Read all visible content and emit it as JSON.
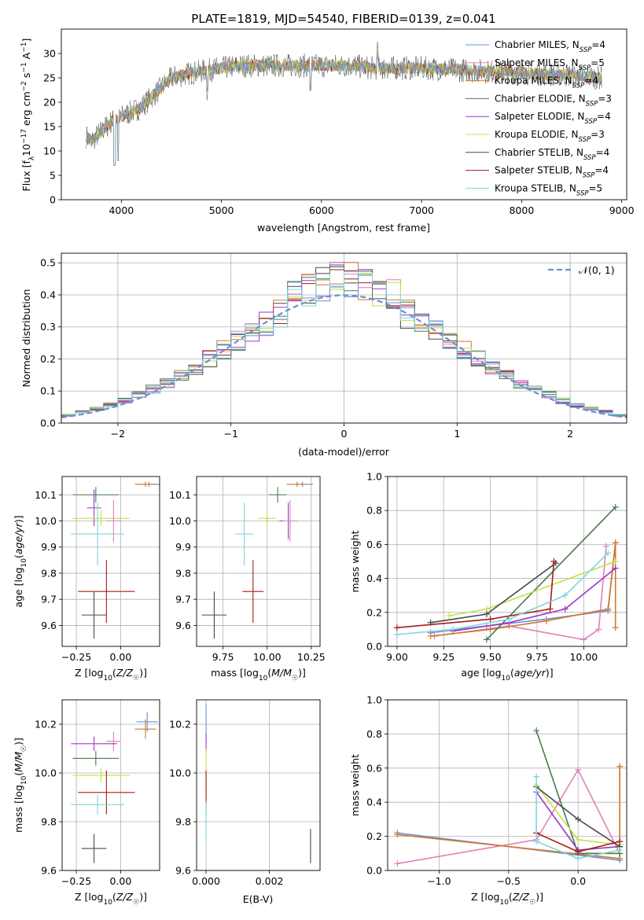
{
  "title": "PLATE=1819, MJD=54540, FIBERID=0139, z=0.041",
  "colors": {
    "chabrier_miles": "#6a8fd8",
    "salpeter_miles": "#e07fb8",
    "kroupa_miles": "#d2782a",
    "chabrier_elodie": "#4a7a4e",
    "salpeter_elodie": "#9b38c4",
    "kroupa_elodie": "#c5e04a",
    "chabrier_stelib": "#4a4a4a",
    "salpeter_stelib": "#a61b1b",
    "kroupa_stelib": "#7ed6dc",
    "gaussian": "#6a8fd8",
    "grid": "#b0b0b0"
  },
  "chart_data": [
    {
      "id": "spectrum",
      "type": "line",
      "xlabel": "wavelength [Angstrom, rest frame]",
      "ylabel": "Flux [f_λ10^-17 erg cm^-2 s^-1 A^-1]",
      "xlim": [
        3400,
        9050
      ],
      "ylim": [
        0,
        35
      ],
      "xticks": [
        4000,
        5000,
        6000,
        7000,
        8000,
        9000
      ],
      "yticks": [
        0,
        5,
        10,
        15,
        20,
        25,
        30
      ],
      "grid": false,
      "legend_position": "right",
      "legend": [
        {
          "label": "Chabrier MILES, N",
          "sub": "SSP",
          "suffix": "=4",
          "color": "chabrier_miles"
        },
        {
          "label": "Salpeter MILES, N",
          "sub": "SSP",
          "suffix": "=5",
          "color": "salpeter_miles"
        },
        {
          "label": "Kroupa MILES, N",
          "sub": "SSP",
          "suffix": "=4",
          "color": "kroupa_miles"
        },
        {
          "label": "Chabrier ELODIE, N",
          "sub": "SSP",
          "suffix": "=3",
          "color": "chabrier_elodie"
        },
        {
          "label": "Salpeter ELODIE, N",
          "sub": "SSP",
          "suffix": "=4",
          "color": "salpeter_elodie"
        },
        {
          "label": "Kroupa ELODIE, N",
          "sub": "SSP",
          "suffix": "=3",
          "color": "kroupa_elodie"
        },
        {
          "label": "Chabrier STELIB, N",
          "sub": "SSP",
          "suffix": "=4",
          "color": "chabrier_stelib"
        },
        {
          "label": "Salpeter STELIB, N",
          "sub": "SSP",
          "suffix": "=4",
          "color": "salpeter_stelib"
        },
        {
          "label": "Kroupa STELIB, N",
          "sub": "SSP",
          "suffix": "=5",
          "color": "kroupa_stelib"
        }
      ],
      "continuum": {
        "x": [
          3650,
          3700,
          3800,
          3900,
          4000,
          4100,
          4200,
          4300,
          4400,
          4500,
          4700,
          5000,
          5200,
          5500,
          5800,
          6000,
          6300,
          6500,
          6800,
          7000,
          7500,
          8000,
          8500,
          8800
        ],
        "y": [
          13,
          12,
          14,
          16,
          17,
          18,
          19,
          21,
          23,
          25,
          26,
          27,
          27.5,
          27.5,
          27.5,
          27.5,
          27.5,
          27,
          27,
          27,
          26.5,
          26,
          25.5,
          25
        ]
      },
      "spectrum_range": [
        3650,
        8800
      ]
    },
    {
      "id": "residuals",
      "type": "bar",
      "xlabel": "(data-model)/error",
      "ylabel": "Normed distribution",
      "xlim": [
        -2.5,
        2.5
      ],
      "ylim": [
        0,
        0.53
      ],
      "xticks": [
        -2,
        -1,
        0,
        1,
        2
      ],
      "yticks": [
        0.0,
        0.1,
        0.2,
        0.3,
        0.4,
        0.5
      ],
      "grid": true,
      "legend_position": "top-right",
      "gaussian_label": "𝒩(0, 1)",
      "bin_width": 0.125,
      "envelope_x": [
        -2.5,
        -2,
        -1.5,
        -1,
        -0.5,
        0,
        0.5,
        1,
        1.5,
        2,
        2.5
      ],
      "envelope_y": [
        0.02,
        0.06,
        0.13,
        0.24,
        0.35,
        0.4,
        0.35,
        0.24,
        0.13,
        0.06,
        0.02
      ]
    },
    {
      "id": "age_vs_z",
      "type": "scatter",
      "xlabel": "Z [log10(Z/Z☉)]",
      "ylabel": "age  [log10(age/yr)]",
      "xlim": [
        -0.33,
        0.22
      ],
      "ylim": [
        9.52,
        10.17
      ],
      "xticks": [
        -0.25,
        0.0
      ],
      "yticks": [
        9.6,
        9.7,
        9.8,
        9.9,
        10.0,
        10.1
      ],
      "grid": true,
      "points": [
        {
          "color": "chabrier_miles",
          "x": 0.16,
          "y": 10.14,
          "xe": 0.06,
          "ye": 0.01
        },
        {
          "color": "kroupa_miles",
          "x": 0.14,
          "y": 10.14,
          "xe": 0.06,
          "ye": 0.01
        },
        {
          "color": "chabrier_elodie",
          "x": -0.14,
          "y": 10.1,
          "xe": 0.13,
          "ye": 0.03
        },
        {
          "color": "salpeter_elodie",
          "x": -0.15,
          "y": 10.05,
          "xe": 0.04,
          "ye": 0.07
        },
        {
          "color": "kroupa_elodie",
          "x": -0.11,
          "y": 10.01,
          "xe": 0.16,
          "ye": 0.03
        },
        {
          "color": "salpeter_miles",
          "x": -0.04,
          "y": 10.0,
          "xe": 0.04,
          "ye": 0.08
        },
        {
          "color": "kroupa_stelib",
          "x": -0.13,
          "y": 9.95,
          "xe": 0.15,
          "ye": 0.12
        },
        {
          "color": "salpeter_stelib",
          "x": -0.08,
          "y": 9.73,
          "xe": 0.16,
          "ye": 0.12
        },
        {
          "color": "chabrier_stelib",
          "x": -0.15,
          "y": 9.64,
          "xe": 0.07,
          "ye": 0.09
        }
      ]
    },
    {
      "id": "age_vs_mass",
      "type": "scatter",
      "xlabel": "mass [log10(M/M☉)]",
      "ylabel": "",
      "xlim": [
        9.6,
        10.3
      ],
      "ylim": [
        9.52,
        10.17
      ],
      "xticks": [
        9.75,
        10.0,
        10.25
      ],
      "yticks": [
        9.6,
        9.7,
        9.8,
        9.9,
        10.0,
        10.1
      ],
      "grid": true,
      "points": [
        {
          "color": "chabrier_miles",
          "x": 10.2,
          "y": 10.14,
          "xe": 0.06,
          "ye": 0.01
        },
        {
          "color": "kroupa_miles",
          "x": 10.17,
          "y": 10.14,
          "xe": 0.06,
          "ye": 0.01
        },
        {
          "color": "chabrier_elodie",
          "x": 10.06,
          "y": 10.1,
          "xe": 0.05,
          "ye": 0.03
        },
        {
          "color": "salpeter_elodie",
          "x": 10.12,
          "y": 10.0,
          "xe": 0.05,
          "ye": 0.07
        },
        {
          "color": "kroupa_elodie",
          "x": 10.0,
          "y": 10.01,
          "xe": 0.05,
          "ye": 0.03
        },
        {
          "color": "salpeter_miles",
          "x": 10.13,
          "y": 10.0,
          "xe": 0.04,
          "ye": 0.08
        },
        {
          "color": "kroupa_stelib",
          "x": 9.87,
          "y": 9.95,
          "xe": 0.05,
          "ye": 0.12
        },
        {
          "color": "salpeter_stelib",
          "x": 9.92,
          "y": 9.73,
          "xe": 0.06,
          "ye": 0.12
        },
        {
          "color": "chabrier_stelib",
          "x": 9.7,
          "y": 9.64,
          "xe": 0.07,
          "ye": 0.09
        }
      ]
    },
    {
      "id": "weight_vs_age",
      "type": "line",
      "xlabel": "age  [log10(age/yr)]",
      "ylabel": "mass weight",
      "xlim": [
        8.95,
        10.23
      ],
      "ylim": [
        0.0,
        1.0
      ],
      "xticks": [
        9.0,
        9.25,
        9.5,
        9.75,
        10.0
      ],
      "yticks": [
        0.0,
        0.2,
        0.4,
        0.6,
        0.8,
        1.0
      ],
      "grid": true,
      "series": [
        {
          "color": "chabrier_miles",
          "x": [
            9.18,
            9.48,
            9.8,
            10.13,
            10.17
          ],
          "y": [
            0.08,
            0.12,
            0.16,
            0.21,
            0.61
          ]
        },
        {
          "color": "salpeter_miles",
          "x": [
            9.2,
            9.6,
            10.0,
            10.08,
            10.12
          ],
          "y": [
            0.06,
            0.12,
            0.04,
            0.1,
            0.59
          ]
        },
        {
          "color": "kroupa_miles",
          "x": [
            9.18,
            9.5,
            9.8,
            10.13,
            10.17,
            10.17
          ],
          "y": [
            0.06,
            0.1,
            0.15,
            0.22,
            0.61,
            0.11
          ]
        },
        {
          "color": "chabrier_elodie",
          "x": [
            9.48,
            10.17
          ],
          "y": [
            0.04,
            0.82
          ]
        },
        {
          "color": "salpeter_elodie",
          "x": [
            9.3,
            9.6,
            9.9,
            10.17
          ],
          "y": [
            0.09,
            0.14,
            0.22,
            0.46
          ]
        },
        {
          "color": "kroupa_elodie",
          "x": [
            9.28,
            9.48,
            10.17
          ],
          "y": [
            0.18,
            0.22,
            0.5
          ]
        },
        {
          "color": "chabrier_stelib",
          "x": [
            9.18,
            9.48,
            9.85
          ],
          "y": [
            0.14,
            0.19,
            0.49
          ]
        },
        {
          "color": "salpeter_stelib",
          "x": [
            9.0,
            9.5,
            9.82,
            9.84
          ],
          "y": [
            0.11,
            0.16,
            0.22,
            0.5
          ]
        },
        {
          "color": "kroupa_stelib",
          "x": [
            9.0,
            9.3,
            9.6,
            9.9,
            10.13
          ],
          "y": [
            0.07,
            0.1,
            0.16,
            0.3,
            0.55
          ]
        }
      ]
    },
    {
      "id": "mass_vs_z",
      "type": "scatter",
      "xlabel": "Z [log10(Z/Z☉)]",
      "ylabel": "mass [log10(M/M☉)]",
      "xlim": [
        -0.33,
        0.22
      ],
      "ylim": [
        9.6,
        10.3
      ],
      "xticks": [
        -0.25,
        0.0
      ],
      "yticks": [
        9.6,
        9.8,
        10.0,
        10.2
      ],
      "grid": true,
      "points": [
        {
          "color": "chabrier_miles",
          "x": 0.15,
          "y": 10.21,
          "xe": 0.06,
          "ye": 0.04
        },
        {
          "color": "kroupa_miles",
          "x": 0.14,
          "y": 10.18,
          "xe": 0.06,
          "ye": 0.04
        },
        {
          "color": "salpeter_miles",
          "x": -0.04,
          "y": 10.13,
          "xe": 0.04,
          "ye": 0.04
        },
        {
          "color": "salpeter_elodie",
          "x": -0.15,
          "y": 10.12,
          "xe": 0.13,
          "ye": 0.03
        },
        {
          "color": "chabrier_elodie",
          "x": -0.14,
          "y": 10.06,
          "xe": 0.13,
          "ye": 0.03
        },
        {
          "color": "kroupa_elodie",
          "x": -0.11,
          "y": 9.99,
          "xe": 0.16,
          "ye": 0.03
        },
        {
          "color": "salpeter_stelib",
          "x": -0.08,
          "y": 9.92,
          "xe": 0.16,
          "ye": 0.09
        },
        {
          "color": "kroupa_stelib",
          "x": -0.13,
          "y": 9.87,
          "xe": 0.15,
          "ye": 0.04
        },
        {
          "color": "chabrier_stelib",
          "x": -0.15,
          "y": 9.69,
          "xe": 0.07,
          "ye": 0.06
        }
      ]
    },
    {
      "id": "mass_vs_ebv",
      "type": "scatter",
      "xlabel": "E(B-V)",
      "ylabel": "",
      "xlim": [
        -0.0003,
        0.0036
      ],
      "ylim": [
        9.6,
        10.3
      ],
      "xticks": [
        0.0,
        0.002
      ],
      "xtick_labels": [
        "0.000",
        "0.002"
      ],
      "yticks": [
        9.6,
        9.8,
        10.0,
        10.2
      ],
      "grid": true,
      "points": [
        {
          "color": "chabrier_miles",
          "x": 0.0,
          "y": 10.21,
          "xe": 0,
          "ye": 0.07
        },
        {
          "color": "salpeter_elodie",
          "x": 0.0,
          "y": 10.12,
          "xe": 0,
          "ye": 0.04
        },
        {
          "color": "kroupa_elodie",
          "x": 0.0,
          "y": 10.0,
          "xe": 0,
          "ye": 0.1
        },
        {
          "color": "salpeter_stelib",
          "x": 0.0,
          "y": 9.92,
          "xe": 0,
          "ye": 0.09
        },
        {
          "color": "kroupa_stelib",
          "x": 0.0,
          "y": 9.8,
          "xe": 0,
          "ye": 0.08
        },
        {
          "color": "chabrier_stelib",
          "x": 0.0033,
          "y": 9.7,
          "xe": 0,
          "ye": 0.07
        }
      ]
    },
    {
      "id": "weight_vs_z",
      "type": "line",
      "xlabel": "Z [log10(Z/Z☉)]",
      "ylabel": "mass weight",
      "xlim": [
        -1.37,
        0.35
      ],
      "ylim": [
        0.0,
        1.0
      ],
      "xticks": [
        -1.0,
        -0.5,
        0.0
      ],
      "xtick_labels": [
        "−1.0",
        "−0.5",
        "0.0"
      ],
      "yticks": [
        0.0,
        0.2,
        0.4,
        0.6,
        0.8,
        1.0
      ],
      "grid": true,
      "series": [
        {
          "color": "chabrier_miles",
          "x": [
            -1.3,
            0.3,
            0.3
          ],
          "y": [
            0.22,
            0.06,
            0.61
          ]
        },
        {
          "color": "salpeter_miles",
          "x": [
            -1.3,
            -0.3,
            0.0,
            0.3,
            0.3
          ],
          "y": [
            0.04,
            0.18,
            0.59,
            0.1,
            0.15
          ]
        },
        {
          "color": "kroupa_miles",
          "x": [
            -1.3,
            0.3,
            0.3
          ],
          "y": [
            0.21,
            0.07,
            0.61
          ]
        },
        {
          "color": "chabrier_elodie",
          "x": [
            -0.3,
            0.0,
            0.3
          ],
          "y": [
            0.82,
            0.1,
            0.1
          ]
        },
        {
          "color": "salpeter_elodie",
          "x": [
            -0.3,
            0.0,
            0.3
          ],
          "y": [
            0.46,
            0.12,
            0.14
          ]
        },
        {
          "color": "kroupa_elodie",
          "x": [
            -0.3,
            0.0,
            0.3
          ],
          "y": [
            0.5,
            0.18,
            0.15
          ]
        },
        {
          "color": "chabrier_stelib",
          "x": [
            -0.3,
            0.0,
            0.3
          ],
          "y": [
            0.49,
            0.3,
            0.14
          ]
        },
        {
          "color": "salpeter_stelib",
          "x": [
            -0.3,
            0.0,
            0.3
          ],
          "y": [
            0.22,
            0.11,
            0.17
          ]
        },
        {
          "color": "kroupa_stelib",
          "x": [
            -0.3,
            -0.3,
            0.0,
            0.3
          ],
          "y": [
            0.55,
            0.17,
            0.07,
            0.12
          ]
        }
      ]
    }
  ]
}
